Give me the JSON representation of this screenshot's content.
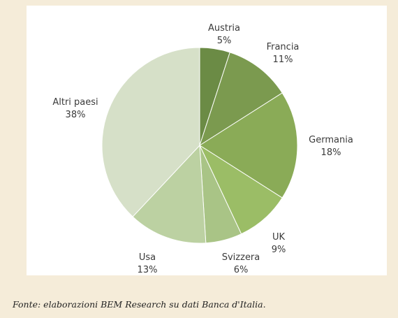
{
  "chart_data": {
    "type": "pie",
    "title": "",
    "start_angle_deg": 0,
    "direction": "clockwise",
    "legend": "none",
    "slices": [
      {
        "label": "Austria",
        "value_label": "5%",
        "value": 5,
        "color": "#6b8b45"
      },
      {
        "label": "Francia",
        "value_label": "11%",
        "value": 11,
        "color": "#7b9a4f"
      },
      {
        "label": "Germania",
        "value_label": "18%",
        "value": 18,
        "color": "#8aab57"
      },
      {
        "label": "UK",
        "value_label": "9%",
        "value": 9,
        "color": "#9bbd66"
      },
      {
        "label": "Svizzera",
        "value_label": "6%",
        "value": 6,
        "color": "#a9c486"
      },
      {
        "label": "Usa",
        "value_label": "13%",
        "value": 13,
        "color": "#bcd1a2"
      },
      {
        "label": "Altri paesi",
        "value_label": "38%",
        "value": 38,
        "color": "#d6e0c8"
      }
    ]
  },
  "source_note": "Fonte: elaborazioni BEM Research su dati Banca d'Italia."
}
